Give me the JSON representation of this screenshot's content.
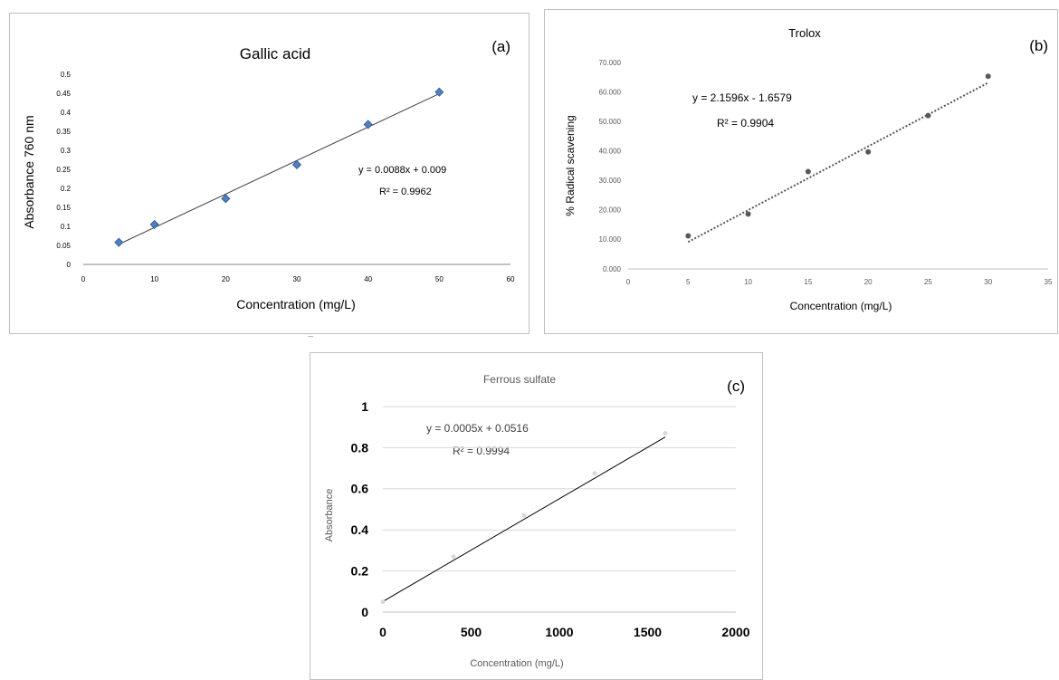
{
  "colors": {
    "panel_a_marker": "#4f81bd",
    "panel_a_marker_edge": "#2f5597",
    "trendline": "#404040",
    "panel_b_marker": "#595959",
    "panel_c_marker": "#d9d9d9",
    "gridline": "#d9d9d9"
  },
  "chart_data": [
    {
      "type": "scatter",
      "panel_label": "(a)",
      "title": "Gallic acid",
      "xlabel": "Concentration (mg/L)",
      "ylabel": "Absorbance 760 nm",
      "x": [
        5,
        10,
        20,
        30,
        40,
        50
      ],
      "y": [
        0.058,
        0.105,
        0.173,
        0.262,
        0.368,
        0.453
      ],
      "xlim": [
        0,
        60
      ],
      "ylim": [
        0,
        0.5
      ],
      "xticks": [
        "0",
        "10",
        "20",
        "30",
        "40",
        "50",
        "60"
      ],
      "yticks": [
        "0",
        "0.05",
        "0.1",
        "0.15",
        "0.2",
        "0.25",
        "0.3",
        "0.35",
        "0.4",
        "0.45",
        "0.5"
      ],
      "trendline": {
        "slope": 0.0088,
        "intercept": 0.009,
        "style": "solid"
      },
      "equation": "y = 0.0088x + 0.009",
      "r2": "R² = 0.9962",
      "grid": false,
      "marker": "diamond"
    },
    {
      "type": "scatter",
      "panel_label": "(b)",
      "title": "Trolox",
      "xlabel": "Concentration (mg/L)",
      "ylabel": "% Radical scavening",
      "x": [
        5,
        10,
        15,
        20,
        25,
        30
      ],
      "y": [
        11.2,
        18.6,
        33.0,
        39.7,
        52.0,
        65.3
      ],
      "xlim": [
        0,
        35
      ],
      "ylim": [
        0,
        70
      ],
      "xticks": [
        "0",
        "5",
        "10",
        "15",
        "20",
        "25",
        "30",
        "35"
      ],
      "yticks": [
        "0.000",
        "10.000",
        "20.000",
        "30.000",
        "40.000",
        "50.000",
        "60.000",
        "70.000"
      ],
      "trendline": {
        "slope": 2.1596,
        "intercept": -1.6579,
        "style": "dotted"
      },
      "equation": "y = 2.1596x - 1.6579",
      "r2": "R² = 0.9904",
      "grid": false,
      "marker": "circle"
    },
    {
      "type": "scatter",
      "panel_label": "(c)",
      "title": "Ferrous sulfate",
      "xlabel": "Concentration (mg/L)",
      "ylabel": "Absorbance",
      "x": [
        0,
        400,
        800,
        1200,
        1600
      ],
      "y": [
        0.05,
        0.27,
        0.47,
        0.675,
        0.87
      ],
      "xlim": [
        0,
        2000
      ],
      "ylim": [
        0,
        1
      ],
      "xticks": [
        "0",
        "500",
        "1000",
        "1500",
        "2000"
      ],
      "yticks": [
        "0",
        "0.2",
        "0.4",
        "0.6",
        "0.8",
        "1"
      ],
      "trendline": {
        "slope": 0.0005,
        "intercept": 0.0516,
        "style": "solid"
      },
      "equation": "y = 0.0005x + 0.0516",
      "r2": "R² = 0.9994",
      "grid": true,
      "marker": "circle"
    }
  ]
}
